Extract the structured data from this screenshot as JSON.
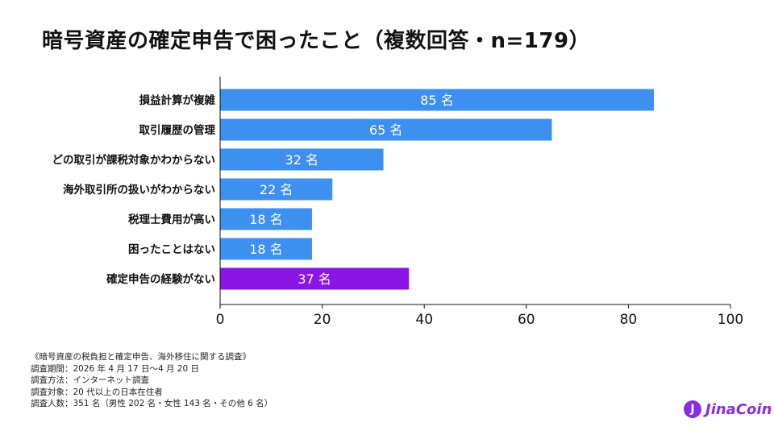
{
  "page": {
    "title": "暗号資産の確定申告で困ったこと（複数回答・n=179）"
  },
  "chart_data": {
    "type": "bar",
    "orientation": "horizontal",
    "title": "暗号資産の確定申告で困ったこと（複数回答・n=179）",
    "categories": [
      "損益計算が複雑",
      "取引履歴の管理",
      "どの取引が課税対象かわからない",
      "海外取引所の扱いがわからない",
      "税理士費用が高い",
      "困ったことはない",
      "確定申告の経験がない"
    ],
    "values": [
      85,
      65,
      32,
      22,
      18,
      18,
      37
    ],
    "value_labels": [
      "85 名",
      "65 名",
      "32 名",
      "22 名",
      "18 名",
      "18 名",
      "37 名"
    ],
    "bar_colors": [
      "#3d8ff0",
      "#3d8ff0",
      "#3d8ff0",
      "#3d8ff0",
      "#3d8ff0",
      "#3d8ff0",
      "#8a16e6"
    ],
    "xlim": [
      0,
      100
    ],
    "xticks": [
      0,
      20,
      40,
      60,
      80,
      100
    ],
    "xlabel": "",
    "ylabel": "",
    "grid": false,
    "legend": "none"
  },
  "footnote": {
    "lines": [
      "《暗号資産の税負担と確定申告、海外移住に関する調査》",
      "調査期間：2026 年 4 月 17 日～4 月 20 日",
      "調査方法：インターネット調査",
      "調査対象：20 代以上の日本在住者",
      "調査人数：351 名（男性 202 名・女性 143 名・その他 6 名）"
    ]
  },
  "logo": {
    "mark": "J",
    "text": "JinaCoin",
    "color": "#8b2be2"
  }
}
